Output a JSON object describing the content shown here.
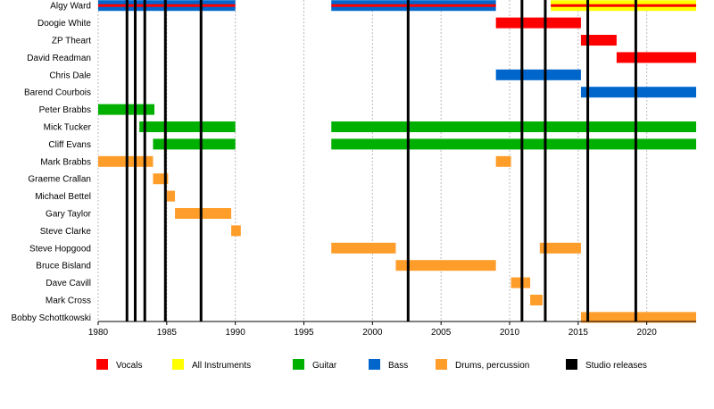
{
  "chart_data": {
    "type": "timeline",
    "x": {
      "min": 1980,
      "max": 2023.6,
      "ticks": [
        1980,
        1985,
        1990,
        1995,
        2000,
        2005,
        2010,
        2015,
        2020
      ]
    },
    "colors": {
      "vocals": "#ff0000",
      "all_instruments": "#ffff00",
      "guitar": "#00b000",
      "bass": "#0066cc",
      "drums": "#ff9d2a",
      "studio": "#000000",
      "gridline": "#bbbbbb"
    },
    "members": [
      {
        "name": "Algy Ward",
        "roles": [
          {
            "role": "bass",
            "start": 1980,
            "end": 1990,
            "stripe": "vocals"
          },
          {
            "role": "bass",
            "start": 1997,
            "end": 2009,
            "stripe": "vocals"
          },
          {
            "role": "all_instruments",
            "start": 2013,
            "end": 2023.6,
            "stripe": "vocals"
          }
        ]
      },
      {
        "name": "Doogie White",
        "roles": [
          {
            "role": "vocals",
            "start": 2009,
            "end": 2015.2
          }
        ]
      },
      {
        "name": "ZP Theart",
        "roles": [
          {
            "role": "vocals",
            "start": 2015.2,
            "end": 2017.8
          }
        ]
      },
      {
        "name": "David Readman",
        "roles": [
          {
            "role": "vocals",
            "start": 2017.8,
            "end": 2023.6
          }
        ]
      },
      {
        "name": "Chris Dale",
        "roles": [
          {
            "role": "bass",
            "start": 2009,
            "end": 2015.2
          }
        ]
      },
      {
        "name": "Barend Courbois",
        "roles": [
          {
            "role": "bass",
            "start": 2015.2,
            "end": 2023.6
          }
        ]
      },
      {
        "name": "Peter Brabbs",
        "roles": [
          {
            "role": "guitar",
            "start": 1980,
            "end": 1984.1
          }
        ]
      },
      {
        "name": "Mick Tucker",
        "roles": [
          {
            "role": "guitar",
            "start": 1983,
            "end": 1990
          },
          {
            "role": "guitar",
            "start": 1997,
            "end": 2023.6
          }
        ]
      },
      {
        "name": "Cliff Evans",
        "roles": [
          {
            "role": "guitar",
            "start": 1984,
            "end": 1990
          },
          {
            "role": "guitar",
            "start": 1997,
            "end": 2023.6
          }
        ]
      },
      {
        "name": "Mark Brabbs",
        "roles": [
          {
            "role": "drums",
            "start": 1980,
            "end": 1984
          },
          {
            "role": "drums",
            "start": 2009,
            "end": 2010.1
          }
        ]
      },
      {
        "name": "Graeme Crallan",
        "roles": [
          {
            "role": "drums",
            "start": 1984,
            "end": 1985.1
          }
        ]
      },
      {
        "name": "Michael Bettel",
        "roles": [
          {
            "role": "drums",
            "start": 1985,
            "end": 1985.6
          }
        ]
      },
      {
        "name": "Gary Taylor",
        "roles": [
          {
            "role": "drums",
            "start": 1985.6,
            "end": 1989.7
          }
        ]
      },
      {
        "name": "Steve Clarke",
        "roles": [
          {
            "role": "drums",
            "start": 1989.7,
            "end": 1990.4
          }
        ]
      },
      {
        "name": "Steve Hopgood",
        "roles": [
          {
            "role": "drums",
            "start": 1997,
            "end": 2001.7
          },
          {
            "role": "drums",
            "start": 2012.2,
            "end": 2015.2
          }
        ]
      },
      {
        "name": "Bruce Bisland",
        "roles": [
          {
            "role": "drums",
            "start": 2001.7,
            "end": 2009
          }
        ]
      },
      {
        "name": "Dave Cavill",
        "roles": [
          {
            "role": "drums",
            "start": 2010.1,
            "end": 2011.5
          }
        ]
      },
      {
        "name": "Mark Cross",
        "roles": [
          {
            "role": "drums",
            "start": 2011.5,
            "end": 2012.4
          }
        ]
      },
      {
        "name": "Bobby Schottkowski",
        "roles": [
          {
            "role": "drums",
            "start": 2015.2,
            "end": 2023.6
          }
        ]
      }
    ],
    "studio_releases": [
      1982.1,
      1982.7,
      1983.4,
      1984.9,
      1987.5,
      2002.6,
      2010.9,
      2012.6,
      2015.7,
      2019.2
    ],
    "legend": [
      {
        "label": "Vocals",
        "key": "vocals"
      },
      {
        "label": "All Instruments",
        "key": "all_instruments"
      },
      {
        "label": "Guitar",
        "key": "guitar"
      },
      {
        "label": "Bass",
        "key": "bass"
      },
      {
        "label": "Drums, percussion",
        "key": "drums"
      },
      {
        "label": "Studio releases",
        "key": "studio"
      }
    ]
  }
}
